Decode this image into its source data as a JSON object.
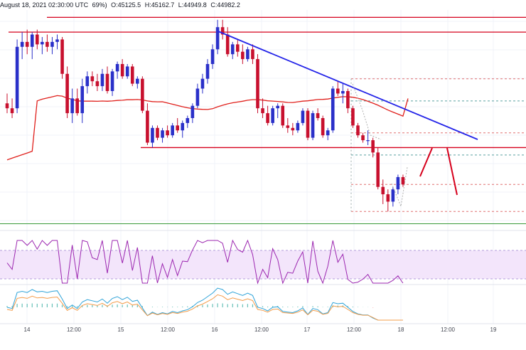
{
  "header": {
    "date_text": "August 18, 2021 02:30:00 UTC",
    "change": "69%)",
    "open": "O:45125.5",
    "high": "H:45162.7",
    "low": "L:44949.8",
    "close": "C:44982.2"
  },
  "colors": {
    "up": "#2a30c9",
    "down": "#c8102e",
    "sma": "#e0201c",
    "trendline": "#2323e8",
    "horizontal": "#d6001c",
    "fib_pink": "#e07070",
    "fib_teal": "#5aa0a0",
    "rsi_line": "#9c27b0",
    "rsi_band": "#f3e5fb",
    "macd_line": "#2fa3d8",
    "signal_line": "#f39c4a",
    "green_line": "#3a9a3a"
  },
  "chart_data": {
    "type": "candlestick",
    "interval": "2h",
    "x_axis_ticks": [
      "14",
      "12:00",
      "15",
      "12:00",
      "16",
      "12:00",
      "17",
      "12:00",
      "18",
      "12:00",
      "19"
    ],
    "ylim": [
      43900,
      48300
    ],
    "candles": [
      [
        46400,
        46600,
        46200,
        46300
      ],
      [
        46300,
        46500,
        46100,
        46200
      ],
      [
        46300,
        47700,
        46200,
        47550
      ],
      [
        47550,
        47850,
        47300,
        47650
      ],
      [
        47650,
        47900,
        47400,
        47550
      ],
      [
        47550,
        47850,
        47300,
        47800
      ],
      [
        47800,
        47900,
        47500,
        47600
      ],
      [
        47600,
        47750,
        47400,
        47650
      ],
      [
        47650,
        47800,
        47450,
        47550
      ],
      [
        47550,
        47750,
        47400,
        47650
      ],
      [
        47650,
        47800,
        47500,
        47700
      ],
      [
        47700,
        47750,
        46900,
        47000
      ],
      [
        47000,
        47150,
        46100,
        46200
      ],
      [
        46200,
        46700,
        46000,
        46500
      ],
      [
        46500,
        46700,
        46150,
        46200
      ],
      [
        46200,
        46900,
        46000,
        46750
      ],
      [
        46750,
        47050,
        46600,
        46950
      ],
      [
        46950,
        47050,
        46750,
        46850
      ],
      [
        46850,
        47000,
        46650,
        46750
      ],
      [
        46750,
        47100,
        46650,
        47000
      ],
      [
        47000,
        47150,
        46600,
        46650
      ],
      [
        46650,
        47100,
        46550,
        47050
      ],
      [
        47050,
        47250,
        46900,
        47200
      ],
      [
        47200,
        47300,
        46900,
        46950
      ],
      [
        46950,
        47200,
        46900,
        47150
      ],
      [
        47150,
        47200,
        46750,
        46800
      ],
      [
        46800,
        46950,
        46700,
        46900
      ],
      [
        46900,
        46950,
        46200,
        46250
      ],
      [
        46250,
        46400,
        45550,
        45600
      ],
      [
        45600,
        45950,
        45500,
        45900
      ],
      [
        45900,
        45950,
        45650,
        45700
      ],
      [
        45700,
        45900,
        45600,
        45850
      ],
      [
        45850,
        45950,
        45700,
        45750
      ],
      [
        45750,
        46000,
        45700,
        45950
      ],
      [
        45950,
        46100,
        45800,
        45850
      ],
      [
        45850,
        46050,
        45700,
        46000
      ],
      [
        46000,
        46150,
        45900,
        46100
      ],
      [
        46100,
        46400,
        46000,
        46350
      ],
      [
        46350,
        46800,
        46300,
        46700
      ],
      [
        46700,
        47000,
        46600,
        46900
      ],
      [
        46900,
        47300,
        46800,
        47200
      ],
      [
        47200,
        47600,
        47100,
        47500
      ],
      [
        47500,
        48100,
        47400,
        47950
      ],
      [
        47950,
        48100,
        47700,
        47800
      ],
      [
        47800,
        47950,
        47350,
        47400
      ],
      [
        47400,
        47650,
        47300,
        47600
      ],
      [
        47600,
        47700,
        47350,
        47450
      ],
      [
        47450,
        47600,
        47200,
        47300
      ],
      [
        47300,
        47550,
        47250,
        47500
      ],
      [
        47500,
        47600,
        47200,
        47300
      ],
      [
        47300,
        47400,
        46200,
        46300
      ],
      [
        46300,
        46500,
        46100,
        46200
      ],
      [
        46200,
        46350,
        45950,
        46000
      ],
      [
        46000,
        46350,
        45950,
        46300
      ],
      [
        46300,
        46400,
        46100,
        46350
      ],
      [
        46350,
        46400,
        45900,
        45950
      ],
      [
        45950,
        46100,
        45800,
        45900
      ],
      [
        45900,
        46000,
        45750,
        45850
      ],
      [
        45850,
        46050,
        45800,
        46000
      ],
      [
        46000,
        46300,
        45950,
        46250
      ],
      [
        46250,
        46300,
        45650,
        45700
      ],
      [
        45700,
        46250,
        45650,
        46200
      ],
      [
        46200,
        46300,
        46050,
        46100
      ],
      [
        46100,
        46150,
        45700,
        45750
      ],
      [
        45750,
        45900,
        45650,
        45850
      ],
      [
        45850,
        46750,
        45800,
        46700
      ],
      [
        46700,
        46850,
        46550,
        46600
      ],
      [
        46600,
        46800,
        46400,
        46650
      ],
      [
        46650,
        46700,
        46200,
        46300
      ],
      [
        46300,
        46350,
        45900,
        45950
      ],
      [
        45950,
        46000,
        45700,
        45750
      ],
      [
        45750,
        45800,
        45600,
        45650
      ],
      [
        45650,
        45850,
        45550,
        45650
      ],
      [
        45650,
        45700,
        45300,
        45400
      ],
      [
        45400,
        45500,
        44650,
        44700
      ],
      [
        44700,
        44850,
        44350,
        44550
      ],
      [
        44550,
        44650,
        44200,
        44400
      ],
      [
        44400,
        44700,
        44300,
        44650
      ],
      [
        44650,
        44950,
        44550,
        44900
      ],
      [
        44900,
        44950,
        44700,
        44750
      ]
    ],
    "horizontal_levels": [
      48150,
      47850,
      45500
    ],
    "fib_levels": [
      46900,
      46450,
      45800,
      45350,
      44750,
      44200
    ],
    "green_level": 43950
  }
}
